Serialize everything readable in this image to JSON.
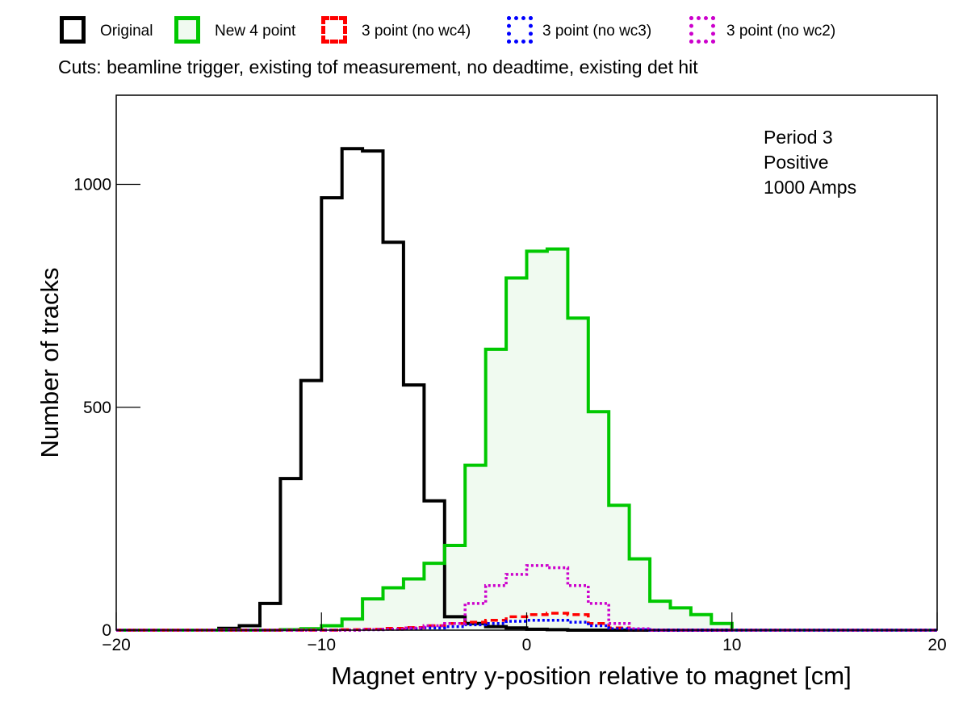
{
  "legend": [
    {
      "label": "Original",
      "color": "#000000",
      "style": "solid",
      "fill": "none"
    },
    {
      "label": "New 4 point",
      "color": "#00c800",
      "style": "solid",
      "fill": "#f0faf0"
    },
    {
      "label": "3 point (no wc4)",
      "color": "#ff0000",
      "style": "dashed",
      "fill": "none"
    },
    {
      "label": "3 point (no wc3)",
      "color": "#0000ff",
      "style": "dotted",
      "fill": "none"
    },
    {
      "label": "3 point (no wc2)",
      "color": "#cc00cc",
      "style": "dotted",
      "fill": "none"
    }
  ],
  "cuts_text": "Cuts: beamline trigger, existing tof measurement, no deadtime, existing det hit",
  "chart_data": {
    "type": "histogram",
    "xlabel": "Magnet entry y-position relative to magnet [cm]",
    "ylabel": "Number of tracks",
    "xlim": [
      -20,
      20
    ],
    "ylim": [
      0,
      1200
    ],
    "bin_width": 1,
    "x_ticks": [
      -20,
      -10,
      0,
      10,
      20
    ],
    "x_tick_labels": [
      "−20",
      "−10",
      "0",
      "10",
      "20"
    ],
    "y_ticks": [
      0,
      500,
      1000
    ],
    "y_tick_labels": [
      "0",
      "500",
      "1000"
    ],
    "annotations": [
      "Period 3",
      "Positive",
      "1000 Amps"
    ],
    "series": [
      {
        "name": "Original",
        "bin_edges_start": -15,
        "values": [
          4,
          10,
          60,
          340,
          560,
          970,
          1080,
          1075,
          870,
          550,
          290,
          30,
          15,
          8,
          5,
          2,
          1,
          0,
          0,
          0,
          0,
          0,
          0,
          0,
          0
        ]
      },
      {
        "name": "New 4 point",
        "bin_edges_start": -15,
        "values": [
          0,
          0,
          0,
          1,
          3,
          10,
          25,
          70,
          95,
          115,
          150,
          190,
          370,
          630,
          790,
          850,
          855,
          700,
          490,
          280,
          160,
          65,
          50,
          35,
          15
        ]
      },
      {
        "name": "3 point (no wc4)",
        "bin_edges_start": -15,
        "values": [
          0,
          0,
          0,
          0,
          0,
          0,
          1,
          2,
          4,
          6,
          10,
          15,
          18,
          22,
          30,
          35,
          38,
          35,
          15,
          5,
          1,
          0,
          0,
          0,
          0
        ]
      },
      {
        "name": "3 point (no wc3)",
        "bin_edges_start": -15,
        "values": [
          0,
          0,
          0,
          0,
          0,
          0,
          0,
          1,
          2,
          3,
          5,
          8,
          12,
          15,
          20,
          22,
          22,
          18,
          10,
          3,
          1,
          0,
          0,
          0,
          0
        ]
      },
      {
        "name": "3 point (no wc2)",
        "bin_edges_start": -15,
        "values": [
          0,
          0,
          0,
          0,
          0,
          0,
          0,
          1,
          2,
          5,
          10,
          15,
          60,
          100,
          125,
          145,
          140,
          100,
          60,
          15,
          3,
          0,
          0,
          0,
          0
        ]
      }
    ]
  }
}
